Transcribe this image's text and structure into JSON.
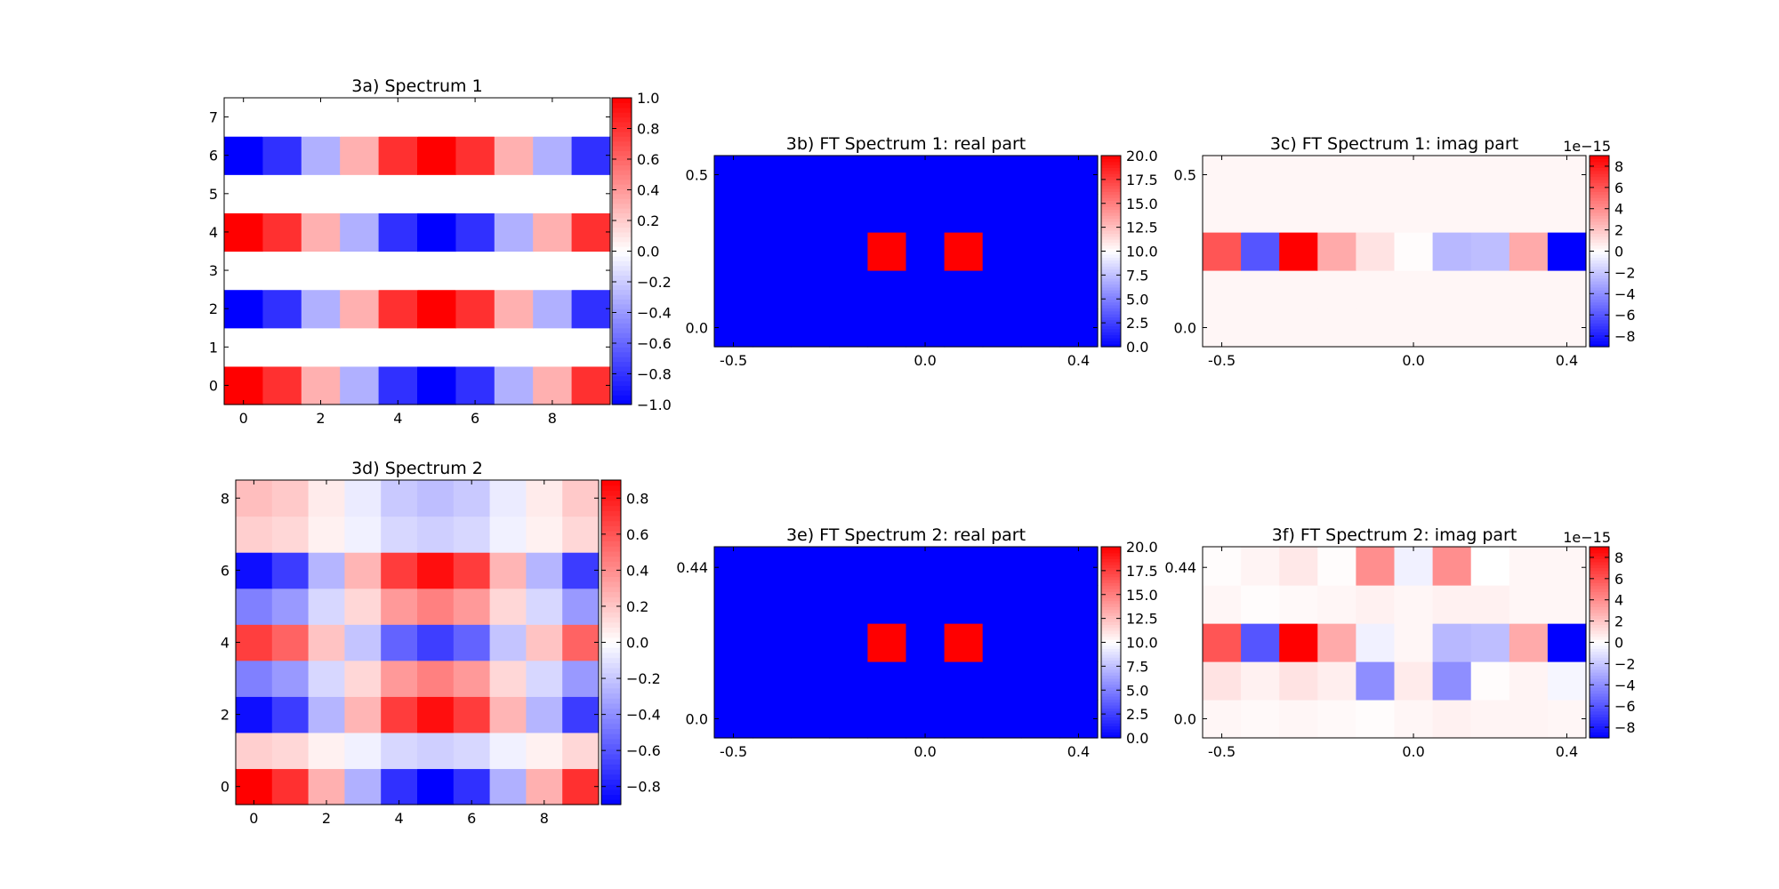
{
  "chart_data": [
    {
      "id": "p3a",
      "type": "heatmap",
      "title": "3a) Spectrum 1",
      "xlim": [
        -0.5,
        9.5
      ],
      "ylim": [
        -0.5,
        7.5
      ],
      "xticks": [
        0,
        2,
        4,
        6,
        8
      ],
      "xticklabels": [
        "0",
        "2",
        "4",
        "6",
        "8"
      ],
      "yticks": [
        0,
        1,
        2,
        3,
        4,
        5,
        6,
        7
      ],
      "yticklabels": [
        "0",
        "1",
        "2",
        "3",
        "4",
        "5",
        "6",
        "7"
      ],
      "colorbar": {
        "vmin": -1,
        "vmax": 1,
        "ticks": [
          -1,
          -0.8,
          -0.6,
          -0.4,
          -0.2,
          0,
          0.2,
          0.4,
          0.6,
          0.8,
          1
        ],
        "ticklabels": [
          "−1.0",
          "−0.8",
          "−0.6",
          "−0.4",
          "−0.2",
          "0.0",
          "0.2",
          "0.4",
          "0.6",
          "0.8",
          "1.0"
        ],
        "offset_label": ""
      },
      "cells": {
        "x0": -0.5,
        "dx": 1,
        "y0": -0.5,
        "dy": 1,
        "values": [
          [
            1,
            0.81,
            0.31,
            -0.31,
            -0.81,
            -1,
            -0.81,
            -0.31,
            0.31,
            0.81
          ],
          [
            0,
            0,
            0,
            0,
            0,
            0,
            0,
            0,
            0,
            0
          ],
          [
            -1,
            -0.81,
            -0.31,
            0.31,
            0.81,
            1,
            0.81,
            0.31,
            -0.31,
            -0.81
          ],
          [
            0,
            0,
            0,
            0,
            0,
            0,
            0,
            0,
            0,
            0
          ],
          [
            1,
            0.81,
            0.31,
            -0.31,
            -0.81,
            -1,
            -0.81,
            -0.31,
            0.31,
            0.81
          ],
          [
            0,
            0,
            0,
            0,
            0,
            0,
            0,
            0,
            0,
            0
          ],
          [
            -1,
            -0.81,
            -0.31,
            0.31,
            0.81,
            1,
            0.81,
            0.31,
            -0.31,
            -0.81
          ],
          [
            0,
            0,
            0,
            0,
            0,
            0,
            0,
            0,
            0,
            0
          ]
        ]
      }
    },
    {
      "id": "p3b",
      "type": "heatmap",
      "title": "3b) FT Spectrum 1: real part",
      "xlim": [
        -0.55,
        0.45
      ],
      "ylim": [
        -0.0625,
        0.5625
      ],
      "xticks": [
        -0.5,
        0,
        0.4
      ],
      "xticklabels": [
        "-0.5",
        "0.0",
        "0.4"
      ],
      "yticks": [
        0,
        0.5
      ],
      "yticklabels": [
        "0.0",
        "0.5"
      ],
      "colorbar": {
        "vmin": 0,
        "vmax": 20,
        "ticks": [
          0,
          2.5,
          5,
          7.5,
          10,
          12.5,
          15,
          17.5,
          20
        ],
        "ticklabels": [
          "0.0",
          "2.5",
          "5.0",
          "7.5",
          "10.0",
          "12.5",
          "15.0",
          "17.5",
          "20.0"
        ],
        "offset_label": ""
      },
      "cells": {
        "x0": -0.55,
        "dx": 0.1,
        "y0": -0.0625,
        "dy": 0.125,
        "values": [
          [
            0,
            0,
            0,
            0,
            0,
            0,
            0,
            0,
            0,
            0
          ],
          [
            0,
            0,
            0,
            0,
            0,
            0,
            0,
            0,
            0,
            0
          ],
          [
            0,
            0,
            0,
            0,
            20,
            0,
            20,
            0,
            0,
            0
          ],
          [
            0,
            0,
            0,
            0,
            0,
            0,
            0,
            0,
            0,
            0
          ],
          [
            0,
            0,
            0,
            0,
            0,
            0,
            0,
            0,
            0,
            0
          ]
        ]
      }
    },
    {
      "id": "p3c",
      "type": "heatmap",
      "title": "3c) FT Spectrum 1: imag part",
      "xlim": [
        -0.55,
        0.45
      ],
      "ylim": [
        -0.0625,
        0.5625
      ],
      "xticks": [
        -0.5,
        0,
        0.4
      ],
      "xticklabels": [
        "-0.5",
        "0.0",
        "0.4"
      ],
      "yticks": [
        0,
        0.5
      ],
      "yticklabels": [
        "0.0",
        "0.5"
      ],
      "colorbar": {
        "vmin": -9,
        "vmax": 9,
        "ticks": [
          -8,
          -6,
          -4,
          -2,
          0,
          2,
          4,
          6,
          8
        ],
        "ticklabels": [
          "−8",
          "−6",
          "−4",
          "−2",
          "0",
          "2",
          "4",
          "6",
          "8"
        ],
        "offset_label": "1e−15"
      },
      "cells": {
        "x0": -0.55,
        "dx": 0.1,
        "y0": -0.0625,
        "dy": 0.125,
        "values": [
          [
            0.3,
            0.3,
            0.3,
            0.3,
            0.3,
            0.3,
            0.3,
            0.3,
            0.3,
            0.3
          ],
          [
            0.3,
            0.3,
            0.3,
            0.3,
            0.3,
            0.3,
            0.3,
            0.3,
            0.3,
            0.3
          ],
          [
            6,
            -6,
            9,
            3,
            1,
            0.1,
            -2.5,
            -2.3,
            3,
            -9
          ],
          [
            0.3,
            0.3,
            0.3,
            0.3,
            0.3,
            0.3,
            0.3,
            0.3,
            0.3,
            0.3
          ],
          [
            0.3,
            0.3,
            0.3,
            0.3,
            0.3,
            0.3,
            0.3,
            0.3,
            0.3,
            0.3
          ]
        ]
      }
    },
    {
      "id": "p3d",
      "type": "heatmap",
      "title": "3d) Spectrum 2",
      "xlim": [
        -0.5,
        9.5
      ],
      "ylim": [
        -0.5,
        8.5
      ],
      "xticks": [
        0,
        2,
        4,
        6,
        8
      ],
      "xticklabels": [
        "0",
        "2",
        "4",
        "6",
        "8"
      ],
      "yticks": [
        0,
        2,
        4,
        6,
        8
      ],
      "yticklabels": [
        "0",
        "2",
        "4",
        "6",
        "8"
      ],
      "colorbar": {
        "vmin": -0.9,
        "vmax": 0.9,
        "ticks": [
          -0.8,
          -0.6,
          -0.4,
          -0.2,
          0,
          0.2,
          0.4,
          0.6,
          0.8
        ],
        "ticklabels": [
          "−0.8",
          "−0.6",
          "−0.4",
          "−0.2",
          "0.0",
          "0.2",
          "0.4",
          "0.6",
          "0.8"
        ],
        "offset_label": ""
      },
      "cells": {
        "x0": -0.5,
        "dx": 1,
        "y0": -0.5,
        "dy": 1,
        "values": [
          [
            0.9,
            0.73,
            0.28,
            -0.28,
            -0.73,
            -0.9,
            -0.73,
            -0.28,
            0.28,
            0.73
          ],
          [
            0.17,
            0.14,
            0.05,
            -0.05,
            -0.14,
            -0.17,
            -0.14,
            -0.05,
            0.05,
            0.14
          ],
          [
            -0.85,
            -0.69,
            -0.26,
            0.26,
            0.69,
            0.85,
            0.69,
            0.26,
            -0.26,
            -0.69
          ],
          [
            -0.45,
            -0.36,
            -0.14,
            0.14,
            0.36,
            0.45,
            0.36,
            0.14,
            -0.14,
            -0.36
          ],
          [
            0.68,
            0.55,
            0.21,
            -0.21,
            -0.55,
            -0.68,
            -0.55,
            -0.21,
            0.21,
            0.55
          ],
          [
            -0.45,
            -0.36,
            -0.14,
            0.14,
            0.36,
            0.45,
            0.36,
            0.14,
            -0.14,
            -0.36
          ],
          [
            -0.85,
            -0.69,
            -0.26,
            0.26,
            0.69,
            0.85,
            0.69,
            0.26,
            -0.26,
            -0.69
          ],
          [
            0.17,
            0.14,
            0.05,
            -0.05,
            -0.14,
            -0.17,
            -0.14,
            -0.05,
            0.05,
            0.14
          ],
          [
            0.23,
            0.19,
            0.07,
            -0.07,
            -0.19,
            -0.23,
            -0.19,
            -0.07,
            0.07,
            0.19
          ]
        ]
      }
    },
    {
      "id": "p3e",
      "type": "heatmap",
      "title": "3e) FT Spectrum 2: real part",
      "xlim": [
        -0.55,
        0.45
      ],
      "ylim": [
        -0.0556,
        0.5
      ],
      "xticks": [
        -0.5,
        0,
        0.4
      ],
      "xticklabels": [
        "-0.5",
        "0.0",
        "0.4"
      ],
      "yticks": [
        0,
        0.44
      ],
      "yticklabels": [
        "0.0",
        "0.44"
      ],
      "colorbar": {
        "vmin": 0,
        "vmax": 20,
        "ticks": [
          0,
          2.5,
          5,
          7.5,
          10,
          12.5,
          15,
          17.5,
          20
        ],
        "ticklabels": [
          "0.0",
          "2.5",
          "5.0",
          "7.5",
          "10.0",
          "12.5",
          "15.0",
          "17.5",
          "20.0"
        ],
        "offset_label": ""
      },
      "cells": {
        "x0": -0.55,
        "dx": 0.1,
        "y0": -0.0556,
        "dy": 0.1111,
        "values": [
          [
            0,
            0,
            0,
            0,
            0,
            0,
            0,
            0,
            0,
            0
          ],
          [
            0,
            0,
            0,
            0,
            0,
            0,
            0,
            0,
            0,
            0
          ],
          [
            0,
            0,
            0,
            0,
            20,
            0,
            20,
            0,
            0,
            0
          ],
          [
            0,
            0,
            0,
            0,
            0,
            0,
            0,
            0,
            0,
            0
          ],
          [
            0,
            0,
            0,
            0,
            0,
            0,
            0,
            0,
            0,
            0
          ]
        ]
      }
    },
    {
      "id": "p3f",
      "type": "heatmap",
      "title": "3f) FT Spectrum 2: imag part",
      "xlim": [
        -0.55,
        0.45
      ],
      "ylim": [
        -0.0556,
        0.5
      ],
      "xticks": [
        -0.5,
        0,
        0.4
      ],
      "xticklabels": [
        "-0.5",
        "0.0",
        "0.4"
      ],
      "yticks": [
        0,
        0.44
      ],
      "yticklabels": [
        "0.0",
        "0.44"
      ],
      "colorbar": {
        "vmin": -9,
        "vmax": 9,
        "ticks": [
          -8,
          -6,
          -4,
          -2,
          0,
          2,
          4,
          6,
          8
        ],
        "ticklabels": [
          "−8",
          "−6",
          "−4",
          "−2",
          "0",
          "2",
          "4",
          "6",
          "8"
        ],
        "offset_label": "1e−15"
      },
      "cells": {
        "x0": -0.55,
        "dx": 0.1,
        "y0": -0.0556,
        "dy": 0.1111,
        "values": [
          [
            0.3,
            0.2,
            0.3,
            0.2,
            0.1,
            0.3,
            0.5,
            0.4,
            0.4,
            0.3
          ],
          [
            1,
            0.5,
            1,
            0.6,
            -4,
            0.7,
            -4,
            0.1,
            0.4,
            -0.3
          ],
          [
            6,
            -6,
            9,
            3,
            -0.5,
            0.3,
            -2.5,
            -2.3,
            3,
            -9
          ],
          [
            0.3,
            0.1,
            0.2,
            0.3,
            0.5,
            0.3,
            0.5,
            0.5,
            0.3,
            0.3
          ],
          [
            0.1,
            0.4,
            0.8,
            0.1,
            4,
            -0.5,
            4,
            0,
            0.3,
            0.3
          ]
        ]
      }
    }
  ]
}
